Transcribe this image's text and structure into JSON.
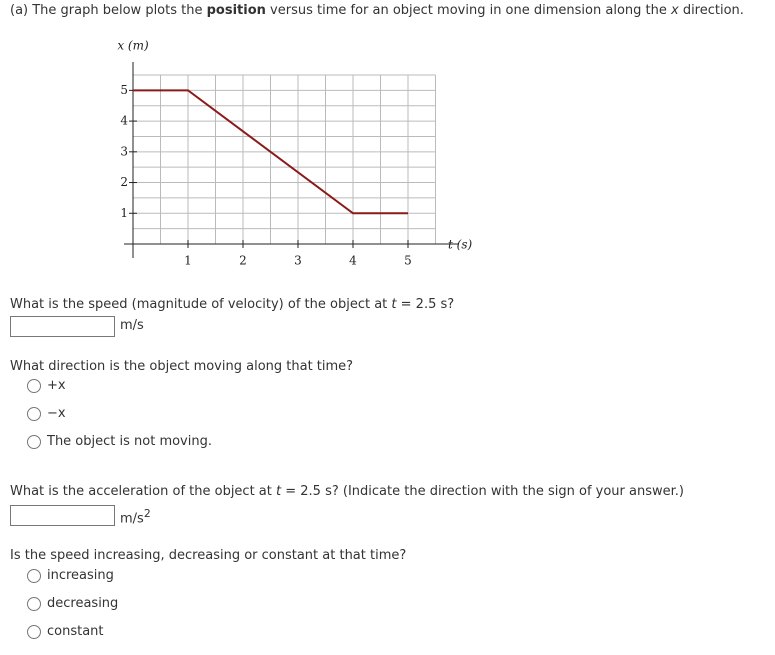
{
  "intro": {
    "prefix": "(a) The graph below plots the ",
    "bold": "position",
    "middle": " versus time for an object moving in one dimension along the ",
    "var": "x",
    "suffix": " direction."
  },
  "chart_data": {
    "type": "line",
    "xlabel": "t (s)",
    "ylabel": "x (m)",
    "x": [
      0,
      1,
      4,
      5
    ],
    "series": [
      {
        "values": [
          5,
          5,
          1,
          1
        ],
        "color": "#8b1a1a"
      }
    ],
    "xlim": [
      0,
      5.5
    ],
    "ylim": [
      0,
      5.5
    ],
    "xticks": [
      1,
      2,
      3,
      4,
      5
    ],
    "yticks": [
      1,
      2,
      3,
      4,
      5
    ],
    "grid": true,
    "grid_step": 0.5
  },
  "q1": {
    "text": "What is the speed (magnitude of velocity) of the object at ",
    "var": "t",
    "tail": " = 2.5 s?",
    "unit": "m/s"
  },
  "q2": {
    "text": "What direction is the object moving along that time?",
    "options": [
      "+x",
      "−x",
      "The object is not moving."
    ]
  },
  "q3": {
    "text": "What is the acceleration of the object at ",
    "var": "t",
    "tail": " = 2.5 s? (Indicate the direction with the sign of your answer.)",
    "unit": "m/s",
    "unit_exp": "2"
  },
  "q4": {
    "text": "Is the speed increasing, decreasing or constant at that time?",
    "options": [
      "increasing",
      "decreasing",
      "constant"
    ]
  }
}
